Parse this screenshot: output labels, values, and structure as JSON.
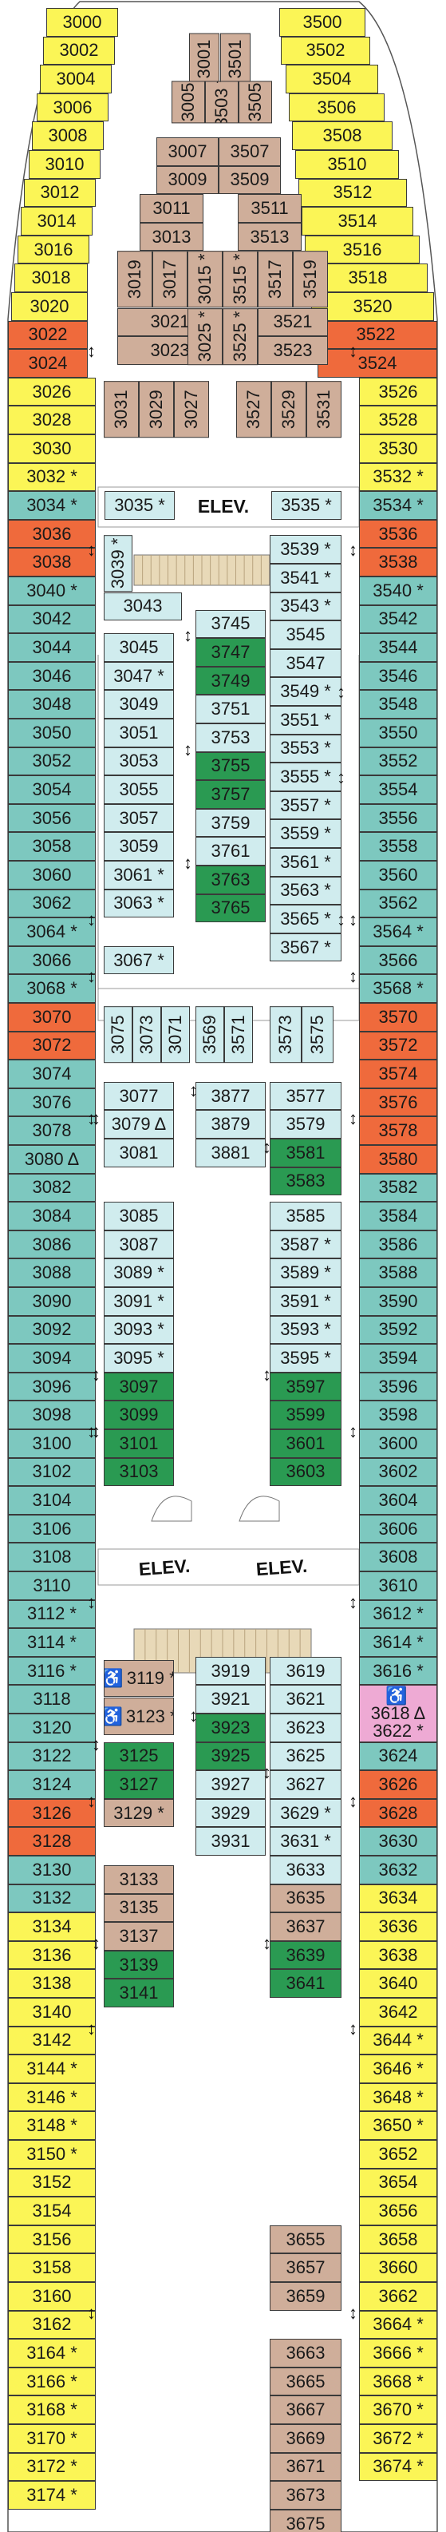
{
  "colors": {
    "yellow": "#fbf556",
    "teal": "#7dc8bf",
    "orange": "#ef6a3c",
    "light_blue": "#d0ecee",
    "tan": "#cfae9a",
    "green": "#2a9a52",
    "pink": "#eeaad4"
  },
  "elevators": [
    "ELEV.",
    "ELEV.",
    "ELEV."
  ],
  "stairs_legend_icon": "connecting-arrow-icon",
  "left_cabins": [
    {
      "n": "3000",
      "c": "y"
    },
    {
      "n": "3002",
      "c": "y"
    },
    {
      "n": "3004",
      "c": "y"
    },
    {
      "n": "3006",
      "c": "y"
    },
    {
      "n": "3008",
      "c": "y"
    },
    {
      "n": "3010",
      "c": "y"
    },
    {
      "n": "3012",
      "c": "y"
    },
    {
      "n": "3014",
      "c": "y"
    },
    {
      "n": "3016",
      "c": "y"
    },
    {
      "n": "3018",
      "c": "y"
    },
    {
      "n": "3020",
      "c": "y"
    },
    {
      "n": "3022",
      "c": "o"
    },
    {
      "n": "3024",
      "c": "o"
    },
    {
      "n": "3026",
      "c": "y"
    },
    {
      "n": "3028",
      "c": "y"
    },
    {
      "n": "3030",
      "c": "y"
    },
    {
      "n": "3032 *",
      "c": "y"
    },
    {
      "n": "3034 *",
      "c": "t"
    },
    {
      "n": "3036",
      "c": "o"
    },
    {
      "n": "3038",
      "c": "o"
    },
    {
      "n": "3040 *",
      "c": "t"
    },
    {
      "n": "3042",
      "c": "t"
    },
    {
      "n": "3044",
      "c": "t"
    },
    {
      "n": "3046",
      "c": "t"
    },
    {
      "n": "3048",
      "c": "t"
    },
    {
      "n": "3050",
      "c": "t"
    },
    {
      "n": "3052",
      "c": "t"
    },
    {
      "n": "3054",
      "c": "t"
    },
    {
      "n": "3056",
      "c": "t"
    },
    {
      "n": "3058",
      "c": "t"
    },
    {
      "n": "3060",
      "c": "t"
    },
    {
      "n": "3062",
      "c": "t"
    },
    {
      "n": "3064 *",
      "c": "t"
    },
    {
      "n": "3066",
      "c": "t"
    },
    {
      "n": "3068 *",
      "c": "t"
    },
    {
      "n": "3070",
      "c": "o"
    },
    {
      "n": "3072",
      "c": "o"
    },
    {
      "n": "3074",
      "c": "t"
    },
    {
      "n": "3076",
      "c": "t"
    },
    {
      "n": "3078",
      "c": "t"
    },
    {
      "n": "3080 Δ",
      "c": "t"
    },
    {
      "n": "3082",
      "c": "t"
    },
    {
      "n": "3084",
      "c": "t"
    },
    {
      "n": "3086",
      "c": "t"
    },
    {
      "n": "3088",
      "c": "t"
    },
    {
      "n": "3090",
      "c": "t"
    },
    {
      "n": "3092",
      "c": "t"
    },
    {
      "n": "3094",
      "c": "t"
    },
    {
      "n": "3096",
      "c": "t"
    },
    {
      "n": "3098",
      "c": "t"
    },
    {
      "n": "3100",
      "c": "t"
    },
    {
      "n": "3102",
      "c": "t"
    },
    {
      "n": "3104",
      "c": "t"
    },
    {
      "n": "3106",
      "c": "t"
    },
    {
      "n": "3108",
      "c": "t"
    },
    {
      "n": "3110",
      "c": "t"
    },
    {
      "n": "3112 *",
      "c": "t"
    },
    {
      "n": "3114 *",
      "c": "t"
    },
    {
      "n": "3116 *",
      "c": "t"
    },
    {
      "n": "3118",
      "c": "t"
    },
    {
      "n": "3120",
      "c": "t"
    },
    {
      "n": "3122",
      "c": "t"
    },
    {
      "n": "3124",
      "c": "t"
    },
    {
      "n": "3126",
      "c": "o"
    },
    {
      "n": "3128",
      "c": "o"
    },
    {
      "n": "3130",
      "c": "t"
    },
    {
      "n": "3132",
      "c": "t"
    },
    {
      "n": "3134",
      "c": "y"
    },
    {
      "n": "3136",
      "c": "y"
    },
    {
      "n": "3138",
      "c": "y"
    },
    {
      "n": "3140",
      "c": "y"
    },
    {
      "n": "3142",
      "c": "y"
    },
    {
      "n": "3144 *",
      "c": "y"
    },
    {
      "n": "3146 *",
      "c": "y"
    },
    {
      "n": "3148 *",
      "c": "y"
    },
    {
      "n": "3150 *",
      "c": "y"
    },
    {
      "n": "3152",
      "c": "y"
    },
    {
      "n": "3154",
      "c": "y"
    },
    {
      "n": "3156",
      "c": "y"
    },
    {
      "n": "3158",
      "c": "y"
    },
    {
      "n": "3160",
      "c": "y"
    },
    {
      "n": "3162",
      "c": "y"
    },
    {
      "n": "3164 *",
      "c": "y"
    },
    {
      "n": "3166 *",
      "c": "y"
    },
    {
      "n": "3168 *",
      "c": "y"
    },
    {
      "n": "3170 *",
      "c": "y"
    },
    {
      "n": "3172 *",
      "c": "y"
    },
    {
      "n": "3174 *",
      "c": "y"
    }
  ],
  "right_cabins": [
    {
      "n": "3500",
      "c": "y"
    },
    {
      "n": "3502",
      "c": "y"
    },
    {
      "n": "3504",
      "c": "y"
    },
    {
      "n": "3506",
      "c": "y"
    },
    {
      "n": "3508",
      "c": "y"
    },
    {
      "n": "3510",
      "c": "y"
    },
    {
      "n": "3512",
      "c": "y"
    },
    {
      "n": "3514",
      "c": "y"
    },
    {
      "n": "3516",
      "c": "y"
    },
    {
      "n": "3518",
      "c": "y"
    },
    {
      "n": "3520",
      "c": "y"
    },
    {
      "n": "3522",
      "c": "o"
    },
    {
      "n": "3524",
      "c": "o"
    },
    {
      "n": "3526",
      "c": "y"
    },
    {
      "n": "3528",
      "c": "y"
    },
    {
      "n": "3530",
      "c": "y"
    },
    {
      "n": "3532 *",
      "c": "y"
    },
    {
      "n": "3534 *",
      "c": "t"
    },
    {
      "n": "3536",
      "c": "o"
    },
    {
      "n": "3538",
      "c": "o"
    },
    {
      "n": "3540 *",
      "c": "t"
    },
    {
      "n": "3542",
      "c": "t"
    },
    {
      "n": "3544",
      "c": "t"
    },
    {
      "n": "3546",
      "c": "t"
    },
    {
      "n": "3548",
      "c": "t"
    },
    {
      "n": "3550",
      "c": "t"
    },
    {
      "n": "3552",
      "c": "t"
    },
    {
      "n": "3554",
      "c": "t"
    },
    {
      "n": "3556",
      "c": "t"
    },
    {
      "n": "3558",
      "c": "t"
    },
    {
      "n": "3560",
      "c": "t"
    },
    {
      "n": "3562",
      "c": "t"
    },
    {
      "n": "3564 *",
      "c": "t"
    },
    {
      "n": "3566",
      "c": "t"
    },
    {
      "n": "3568 *",
      "c": "t"
    },
    {
      "n": "3570",
      "c": "o"
    },
    {
      "n": "3572",
      "c": "o"
    },
    {
      "n": "3574",
      "c": "o"
    },
    {
      "n": "3576",
      "c": "o"
    },
    {
      "n": "3578",
      "c": "o"
    },
    {
      "n": "3580",
      "c": "o"
    },
    {
      "n": "3582",
      "c": "t"
    },
    {
      "n": "3584",
      "c": "t"
    },
    {
      "n": "3586",
      "c": "t"
    },
    {
      "n": "3588",
      "c": "t"
    },
    {
      "n": "3590",
      "c": "t"
    },
    {
      "n": "3592",
      "c": "t"
    },
    {
      "n": "3594",
      "c": "t"
    },
    {
      "n": "3596",
      "c": "t"
    },
    {
      "n": "3598",
      "c": "t"
    },
    {
      "n": "3600",
      "c": "t"
    },
    {
      "n": "3602",
      "c": "t"
    },
    {
      "n": "3604",
      "c": "t"
    },
    {
      "n": "3606",
      "c": "t"
    },
    {
      "n": "3608",
      "c": "t"
    },
    {
      "n": "3610",
      "c": "t"
    },
    {
      "n": "3612 *",
      "c": "t"
    },
    {
      "n": "3614 *",
      "c": "t"
    },
    {
      "n": "3616 *",
      "c": "t"
    },
    {
      "n": "3618 Δ",
      "c": "pk",
      "tall": true,
      "wc": true
    },
    {
      "n": "3622 *",
      "c": "pk",
      "skip": true
    },
    {
      "n": "3624",
      "c": "t"
    },
    {
      "n": "3626",
      "c": "o"
    },
    {
      "n": "3628",
      "c": "o"
    },
    {
      "n": "3630",
      "c": "t"
    },
    {
      "n": "3632",
      "c": "t"
    },
    {
      "n": "3634",
      "c": "y"
    },
    {
      "n": "3636",
      "c": "y"
    },
    {
      "n": "3638",
      "c": "y"
    },
    {
      "n": "3640",
      "c": "y"
    },
    {
      "n": "3642",
      "c": "y"
    },
    {
      "n": "3644 *",
      "c": "y"
    },
    {
      "n": "3646 *",
      "c": "y"
    },
    {
      "n": "3648 *",
      "c": "y"
    },
    {
      "n": "3650 *",
      "c": "y"
    },
    {
      "n": "3652",
      "c": "y"
    },
    {
      "n": "3654",
      "c": "y"
    },
    {
      "n": "3656",
      "c": "y"
    },
    {
      "n": "3658",
      "c": "y"
    },
    {
      "n": "3660",
      "c": "y"
    },
    {
      "n": "3662",
      "c": "y"
    },
    {
      "n": "3664 *",
      "c": "y"
    },
    {
      "n": "3666 *",
      "c": "y"
    },
    {
      "n": "3668 *",
      "c": "y"
    },
    {
      "n": "3670 *",
      "c": "y"
    },
    {
      "n": "3672 *",
      "c": "y"
    },
    {
      "n": "3674 *",
      "c": "y"
    }
  ],
  "inner_cabins": [
    {
      "n": "3001",
      "c": "tn",
      "v": true
    },
    {
      "n": "3501",
      "c": "tn",
      "v": true
    },
    {
      "n": "3005",
      "c": "tn",
      "v": true
    },
    {
      "n": "3503 *",
      "c": "tn",
      "v": true
    },
    {
      "n": "3505",
      "c": "tn",
      "v": true
    },
    {
      "n": "3007",
      "c": "tn"
    },
    {
      "n": "3507",
      "c": "tn"
    },
    {
      "n": "3009",
      "c": "tn"
    },
    {
      "n": "3509",
      "c": "tn"
    },
    {
      "n": "3011",
      "c": "tn"
    },
    {
      "n": "3013",
      "c": "tn"
    },
    {
      "n": "3511",
      "c": "tn"
    },
    {
      "n": "3513",
      "c": "tn"
    },
    {
      "n": "3019",
      "c": "tn",
      "v": true
    },
    {
      "n": "3017",
      "c": "tn",
      "v": true
    },
    {
      "n": "3015 *",
      "c": "tn",
      "v": true
    },
    {
      "n": "3515 *",
      "c": "tn",
      "v": true
    },
    {
      "n": "3517",
      "c": "tn",
      "v": true
    },
    {
      "n": "3519",
      "c": "tn",
      "v": true
    },
    {
      "n": "3021",
      "c": "tn"
    },
    {
      "n": "3023",
      "c": "tn"
    },
    {
      "n": "3025 *",
      "c": "tn",
      "v": true
    },
    {
      "n": "3525 *",
      "c": "tn",
      "v": true
    },
    {
      "n": "3521",
      "c": "tn"
    },
    {
      "n": "3523",
      "c": "tn"
    },
    {
      "n": "3031",
      "c": "tn",
      "v": true
    },
    {
      "n": "3029",
      "c": "tn",
      "v": true
    },
    {
      "n": "3027",
      "c": "tn",
      "v": true
    },
    {
      "n": "3527",
      "c": "tn",
      "v": true
    },
    {
      "n": "3529",
      "c": "tn",
      "v": true
    },
    {
      "n": "3531",
      "c": "tn",
      "v": true
    },
    {
      "n": "3035 *",
      "c": "pb"
    },
    {
      "n": "3535 *",
      "c": "pb"
    },
    {
      "n": "3039 *",
      "c": "pb",
      "v": true
    },
    {
      "n": "3043",
      "c": "pb"
    },
    {
      "n": "3539 *",
      "c": "pb"
    },
    {
      "n": "3541 *",
      "c": "pb"
    },
    {
      "n": "3543 *",
      "c": "pb"
    },
    {
      "n": "3545",
      "c": "pb"
    },
    {
      "n": "3547",
      "c": "pb"
    },
    {
      "n": "3549 *",
      "c": "pb"
    },
    {
      "n": "3551 *",
      "c": "pb"
    },
    {
      "n": "3553 *",
      "c": "pb"
    },
    {
      "n": "3555 *",
      "c": "pb"
    },
    {
      "n": "3557 *",
      "c": "pb"
    },
    {
      "n": "3559 *",
      "c": "pb"
    },
    {
      "n": "3561 *",
      "c": "pb"
    },
    {
      "n": "3563 *",
      "c": "pb"
    },
    {
      "n": "3565 *",
      "c": "pb"
    },
    {
      "n": "3567 *",
      "c": "pb"
    },
    {
      "n": "3045",
      "c": "pb"
    },
    {
      "n": "3047 *",
      "c": "pb"
    },
    {
      "n": "3049",
      "c": "pb"
    },
    {
      "n": "3051",
      "c": "pb"
    },
    {
      "n": "3053",
      "c": "pb"
    },
    {
      "n": "3055",
      "c": "pb"
    },
    {
      "n": "3057",
      "c": "pb"
    },
    {
      "n": "3059",
      "c": "pb"
    },
    {
      "n": "3061 *",
      "c": "pb"
    },
    {
      "n": "3063 *",
      "c": "pb"
    },
    {
      "n": "3067 *",
      "c": "pb"
    },
    {
      "n": "3745",
      "c": "pb"
    },
    {
      "n": "3747",
      "c": "g"
    },
    {
      "n": "3749",
      "c": "g"
    },
    {
      "n": "3751",
      "c": "pb"
    },
    {
      "n": "3753",
      "c": "pb"
    },
    {
      "n": "3755",
      "c": "g"
    },
    {
      "n": "3757",
      "c": "g"
    },
    {
      "n": "3759",
      "c": "pb"
    },
    {
      "n": "3761",
      "c": "pb"
    },
    {
      "n": "3763",
      "c": "g"
    },
    {
      "n": "3765",
      "c": "g"
    },
    {
      "n": "3075",
      "c": "pb",
      "v": true
    },
    {
      "n": "3073",
      "c": "pb",
      "v": true
    },
    {
      "n": "3071",
      "c": "pb",
      "v": true
    },
    {
      "n": "3569",
      "c": "pb",
      "v": true
    },
    {
      "n": "3571",
      "c": "pb",
      "v": true
    },
    {
      "n": "3573",
      "c": "pb",
      "v": true
    },
    {
      "n": "3575",
      "c": "pb",
      "v": true
    },
    {
      "n": "3077",
      "c": "pb"
    },
    {
      "n": "3079 Δ",
      "c": "pb"
    },
    {
      "n": "3081",
      "c": "pb"
    },
    {
      "n": "3877",
      "c": "pb"
    },
    {
      "n": "3879",
      "c": "pb"
    },
    {
      "n": "3881",
      "c": "pb"
    },
    {
      "n": "3577",
      "c": "pb"
    },
    {
      "n": "3579",
      "c": "pb"
    },
    {
      "n": "3581",
      "c": "g"
    },
    {
      "n": "3583",
      "c": "g"
    },
    {
      "n": "3085",
      "c": "pb"
    },
    {
      "n": "3087",
      "c": "pb"
    },
    {
      "n": "3089 *",
      "c": "pb"
    },
    {
      "n": "3091 *",
      "c": "pb"
    },
    {
      "n": "3093 *",
      "c": "pb"
    },
    {
      "n": "3095 *",
      "c": "pb"
    },
    {
      "n": "3097",
      "c": "g"
    },
    {
      "n": "3099",
      "c": "g"
    },
    {
      "n": "3101",
      "c": "g"
    },
    {
      "n": "3103",
      "c": "g"
    },
    {
      "n": "3585",
      "c": "pb"
    },
    {
      "n": "3587 *",
      "c": "pb"
    },
    {
      "n": "3589 *",
      "c": "pb"
    },
    {
      "n": "3591 *",
      "c": "pb"
    },
    {
      "n": "3593 *",
      "c": "pb"
    },
    {
      "n": "3595 *",
      "c": "pb"
    },
    {
      "n": "3597",
      "c": "g"
    },
    {
      "n": "3599",
      "c": "g"
    },
    {
      "n": "3601",
      "c": "g"
    },
    {
      "n": "3603",
      "c": "g"
    },
    {
      "n": "3119 *",
      "c": "tn",
      "wc": true
    },
    {
      "n": "3123 *",
      "c": "tn",
      "wc": true
    },
    {
      "n": "3125",
      "c": "g"
    },
    {
      "n": "3127",
      "c": "g"
    },
    {
      "n": "3129 *",
      "c": "tn"
    },
    {
      "n": "3919",
      "c": "pb"
    },
    {
      "n": "3921",
      "c": "pb"
    },
    {
      "n": "3923",
      "c": "g"
    },
    {
      "n": "3925",
      "c": "g"
    },
    {
      "n": "3927",
      "c": "pb"
    },
    {
      "n": "3929",
      "c": "pb"
    },
    {
      "n": "3931",
      "c": "pb"
    },
    {
      "n": "3619",
      "c": "pb"
    },
    {
      "n": "3621",
      "c": "pb"
    },
    {
      "n": "3623",
      "c": "pb"
    },
    {
      "n": "3625",
      "c": "pb"
    },
    {
      "n": "3627",
      "c": "pb"
    },
    {
      "n": "3629 *",
      "c": "pb"
    },
    {
      "n": "3631 *",
      "c": "pb"
    },
    {
      "n": "3633",
      "c": "pb"
    },
    {
      "n": "3133",
      "c": "tn"
    },
    {
      "n": "3135",
      "c": "tn"
    },
    {
      "n": "3137",
      "c": "tn"
    },
    {
      "n": "3139",
      "c": "g"
    },
    {
      "n": "3141",
      "c": "g"
    },
    {
      "n": "3635",
      "c": "tn"
    },
    {
      "n": "3637",
      "c": "tn"
    },
    {
      "n": "3639",
      "c": "g"
    },
    {
      "n": "3641",
      "c": "g"
    },
    {
      "n": "3655",
      "c": "tn"
    },
    {
      "n": "3657",
      "c": "tn"
    },
    {
      "n": "3659",
      "c": "tn"
    },
    {
      "n": "3663",
      "c": "tn"
    },
    {
      "n": "3665",
      "c": "tn"
    },
    {
      "n": "3667",
      "c": "tn"
    },
    {
      "n": "3669",
      "c": "tn"
    },
    {
      "n": "3671",
      "c": "tn"
    },
    {
      "n": "3673",
      "c": "tn"
    },
    {
      "n": "3675",
      "c": "tn"
    }
  ]
}
